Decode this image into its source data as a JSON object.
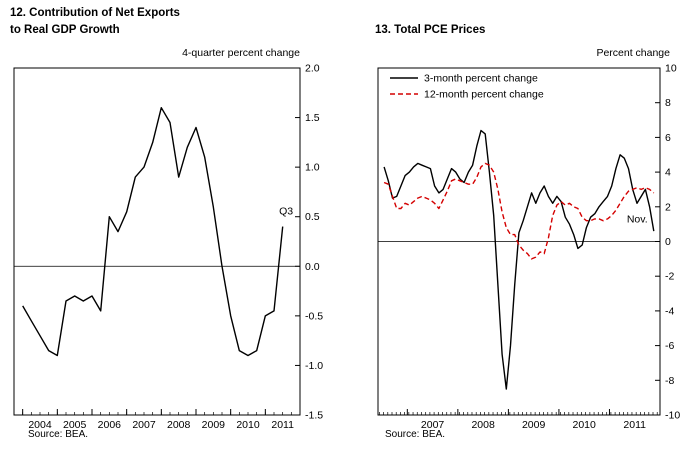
{
  "page": {
    "background": "#ffffff"
  },
  "chart_data": [
    {
      "type": "line",
      "panel_number": "12.",
      "title": "Contribution of Net Exports to Real GDP Growth",
      "title_lines": [
        "12. Contribution of Net Exports",
        "to Real GDP Growth"
      ],
      "unit_label": "4-quarter percent change",
      "source": "Source: BEA.",
      "xlim": [
        2003.75,
        2012.0
      ],
      "ylim": [
        -1.5,
        2.0
      ],
      "y_ticks": [
        2.0,
        1.5,
        1.0,
        0.5,
        0.0,
        -0.5,
        -1.0,
        -1.5
      ],
      "y_tick_labels": [
        "2.0",
        "1.5",
        "1.0",
        "0.5",
        "0.0",
        "-0.5",
        "-1.0",
        "-1.5"
      ],
      "x_tick_years": [
        2004,
        2005,
        2006,
        2007,
        2008,
        2009,
        2010,
        2011
      ],
      "minor_step": 0.25,
      "zero_line": true,
      "grid": false,
      "legend_position": "none",
      "annotation": {
        "label": "Q3",
        "x": 2011.6,
        "y": 0.52
      },
      "series": [
        {
          "name": "Contribution of net exports to real GDP growth (4-quarter percent change)",
          "color": "#000000",
          "dash": null,
          "x_start": 2004.0,
          "x_step": 0.25,
          "values": [
            -0.4,
            -0.55,
            -0.7,
            -0.85,
            -0.9,
            -0.35,
            -0.3,
            -0.35,
            -0.3,
            -0.45,
            0.5,
            0.35,
            0.55,
            0.9,
            1.0,
            1.25,
            1.6,
            1.45,
            0.9,
            1.2,
            1.4,
            1.1,
            0.6,
            0.0,
            -0.5,
            -0.85,
            -0.9,
            -0.85,
            -0.5,
            -0.45,
            0.4
          ]
        }
      ]
    },
    {
      "type": "line",
      "panel_number": "13.",
      "title": "Total PCE Prices",
      "title_lines": [
        "13. Total PCE Prices"
      ],
      "unit_label": "Percent change",
      "source": "Source: BEA.",
      "xlim": [
        2006.42,
        2012.0
      ],
      "ylim": [
        -10,
        10
      ],
      "y_ticks": [
        10,
        8,
        6,
        4,
        2,
        0,
        -2,
        -4,
        -6,
        -8,
        -10
      ],
      "y_tick_labels": [
        "10",
        "8",
        "6",
        "4",
        "2",
        "0",
        "-2",
        "-4",
        "-6",
        "-8",
        "-10"
      ],
      "x_tick_years": [
        2007,
        2008,
        2009,
        2010,
        2011
      ],
      "minor_step": 0.0833,
      "zero_line": true,
      "grid": false,
      "legend_position": "top-left",
      "annotation": {
        "label": "Nov.",
        "x": 2011.55,
        "y": 1.1
      },
      "legend": [
        {
          "label": "3-month percent change",
          "color": "#000000",
          "dash": null
        },
        {
          "label": "12-month percent change",
          "color": "#d40000",
          "dash": "5,3"
        }
      ],
      "series": [
        {
          "name": "3-month percent change",
          "color": "#000000",
          "dash": null,
          "x_start": 2006.54,
          "x_step": 0.0834,
          "values": [
            4.3,
            3.5,
            2.5,
            2.6,
            3.2,
            3.8,
            4.0,
            4.3,
            4.5,
            4.4,
            4.3,
            4.2,
            3.2,
            2.8,
            3.0,
            3.6,
            4.2,
            4.0,
            3.6,
            3.4,
            4.0,
            4.4,
            5.5,
            6.4,
            6.2,
            4.0,
            1.5,
            -2.5,
            -6.5,
            -8.5,
            -6.0,
            -2.5,
            0.5,
            1.2,
            2.0,
            2.8,
            2.2,
            2.8,
            3.2,
            2.6,
            2.2,
            2.6,
            2.3,
            1.4,
            1.0,
            0.4,
            -0.4,
            -0.2,
            0.8,
            1.4,
            1.6,
            2.0,
            2.3,
            2.6,
            3.2,
            4.2,
            5.0,
            4.8,
            4.2,
            3.0,
            2.2,
            2.6,
            3.0,
            2.0,
            0.6
          ]
        },
        {
          "name": "12-month percent change",
          "color": "#d40000",
          "dash": "5,3",
          "x_start": 2006.54,
          "x_step": 0.0834,
          "values": [
            3.4,
            3.3,
            2.6,
            1.9,
            1.9,
            2.2,
            2.1,
            2.3,
            2.5,
            2.6,
            2.5,
            2.4,
            2.2,
            1.9,
            2.4,
            2.9,
            3.5,
            3.6,
            3.5,
            3.4,
            3.3,
            3.3,
            3.7,
            4.3,
            4.5,
            4.4,
            4.0,
            3.0,
            1.7,
            0.8,
            0.4,
            0.4,
            -0.2,
            -0.5,
            -0.7,
            -1.0,
            -0.9,
            -0.6,
            -0.7,
            0.2,
            1.5,
            2.1,
            2.3,
            2.1,
            2.2,
            2.0,
            1.9,
            1.4,
            1.2,
            1.2,
            1.3,
            1.3,
            1.2,
            1.3,
            1.5,
            1.8,
            2.2,
            2.6,
            2.9,
            3.0,
            3.1,
            3.0,
            3.1,
            3.0,
            2.8
          ]
        }
      ]
    }
  ]
}
